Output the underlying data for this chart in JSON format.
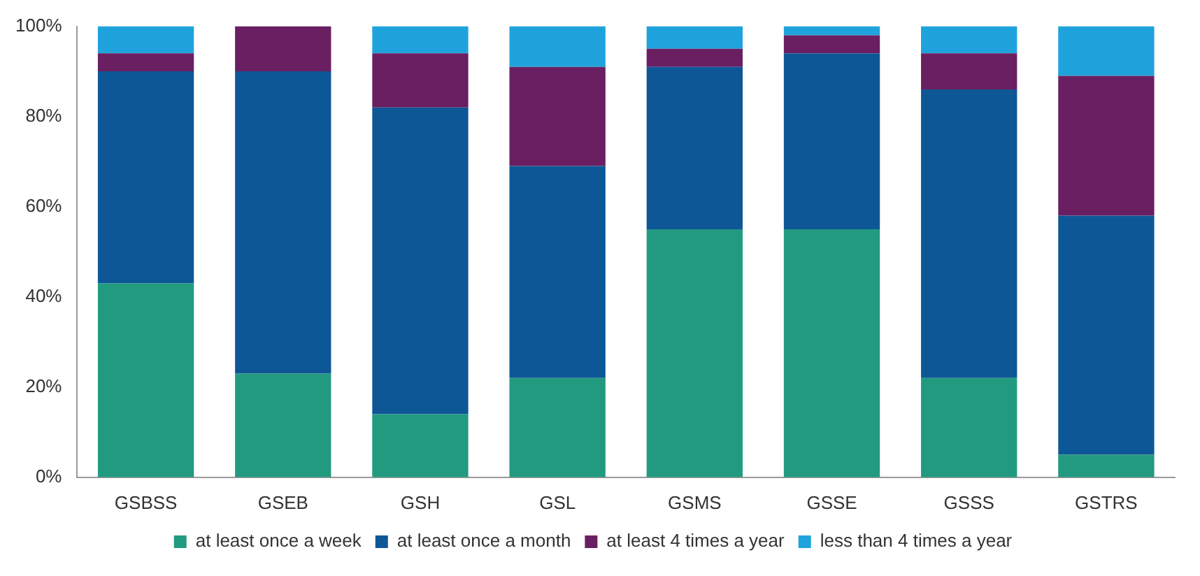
{
  "chart_data": {
    "type": "bar",
    "stacked": true,
    "categories": [
      "GSBSS",
      "GSEB",
      "GSH",
      "GSL",
      "GSMS",
      "GSSE",
      "GSSS",
      "GSTRS"
    ],
    "series": [
      {
        "name": "at least once a week",
        "color": "#229a80",
        "values": [
          43,
          23,
          14,
          22,
          55,
          55,
          22,
          5
        ]
      },
      {
        "name": "at least once a month",
        "color": "#0e5797",
        "values": [
          47,
          67,
          68,
          47,
          36,
          39,
          64,
          53
        ]
      },
      {
        "name": "at least 4 times a year",
        "color": "#6a1f62",
        "values": [
          4,
          10,
          12,
          22,
          4,
          4,
          8,
          31
        ]
      },
      {
        "name": "less than 4 times a year",
        "color": "#1fa3dd",
        "values": [
          6,
          0,
          6,
          9,
          5,
          2,
          6,
          11
        ]
      }
    ],
    "ylim": [
      0,
      100
    ],
    "yticks": [
      {
        "value": 0,
        "label": "0%"
      },
      {
        "value": 20,
        "label": "20%"
      },
      {
        "value": 40,
        "label": "40%"
      },
      {
        "value": 60,
        "label": "60%"
      },
      {
        "value": 80,
        "label": "80%"
      },
      {
        "value": 100,
        "label": "100%"
      }
    ],
    "grid": false,
    "legend": "bottom"
  }
}
